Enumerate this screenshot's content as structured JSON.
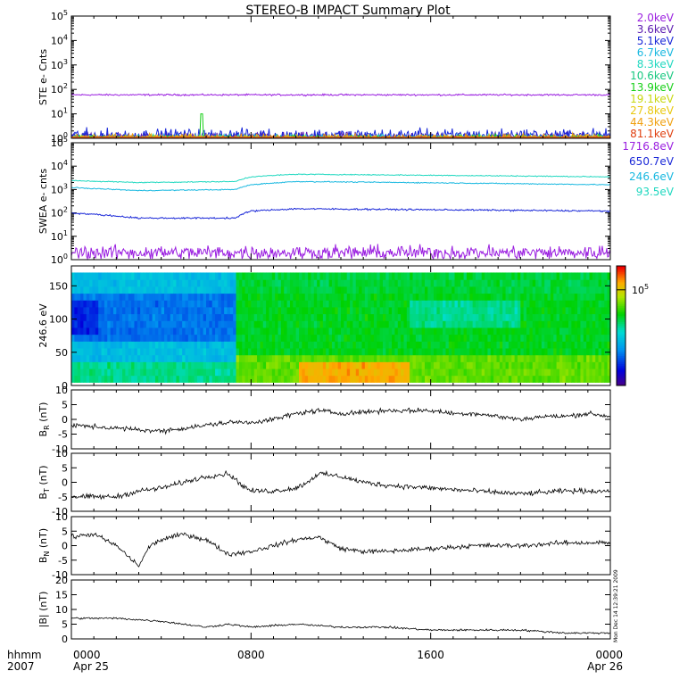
{
  "title": "STEREO-B IMPACT Summary Plot",
  "timestamp": "Mon Dec 14 12:39:21 2009",
  "x_axis": {
    "corner_labels": [
      "hhmm",
      "2007"
    ],
    "ticks": [
      {
        "hour": 0,
        "time": "0000",
        "date": "Apr 25"
      },
      {
        "hour": 8,
        "time": "0800",
        "date": ""
      },
      {
        "hour": 16,
        "time": "1600",
        "date": ""
      },
      {
        "hour": 24,
        "time": "0000",
        "date": "Apr 26"
      }
    ],
    "range_hours": [
      0,
      24
    ]
  },
  "colors": {
    "purple": "#9a1ee0",
    "violet": "#5a1ab0",
    "blue": "#1a28d8",
    "cyan": "#18b8e0",
    "teal": "#20d8c0",
    "green": "#18d018",
    "yellow": "#e8c810",
    "orange": "#f0a010",
    "red": "#e02010"
  },
  "chart_data": [
    {
      "type": "line",
      "id": "ste",
      "ylabel": "STE e- Cnts",
      "yscale": "log",
      "ylim_exp": [
        0,
        5
      ],
      "y_ticks": [
        "10^0",
        "10^1",
        "10^2",
        "10^3",
        "10^4",
        "10^5"
      ],
      "series": [
        {
          "name": "2.0keV",
          "color": "#9a1ee0",
          "level": 60,
          "noise": 0.05,
          "side": true
        },
        {
          "name": "3.6keV",
          "color": "#5a1ab0",
          "level": 1.1,
          "noise": 0.3,
          "side": true
        },
        {
          "name": "5.1keV",
          "color": "#1a28d8",
          "level": 1.3,
          "noise": 0.4,
          "side": true
        },
        {
          "name": "6.7keV",
          "color": "#18b8e0",
          "level": 1.0,
          "noise": 0.2,
          "side": true
        },
        {
          "name": "8.3keV",
          "color": "#20d8c0",
          "level": 1.0,
          "noise": 0.2,
          "side": true
        },
        {
          "name": "10.6keV",
          "color": "#18c880",
          "level": 1.0,
          "noise": 0.2,
          "side": true
        },
        {
          "name": "13.9keV",
          "color": "#18d018",
          "level": 1.0,
          "noise": 0.2,
          "side": true,
          "spike": {
            "hour": 5.8,
            "value": 10
          }
        },
        {
          "name": "19.1keV",
          "color": "#c8d810",
          "level": 1.0,
          "noise": 0.15,
          "side": true
        },
        {
          "name": "27.8keV",
          "color": "#e8c810",
          "level": 1.0,
          "noise": 0.15,
          "side": true
        },
        {
          "name": "44.3keV",
          "color": "#f0a010",
          "level": 1.1,
          "noise": 0.2,
          "side": true
        },
        {
          "name": "81.1keV",
          "color": "#e04010",
          "level": 1.0,
          "noise": 0.1,
          "side": true
        }
      ]
    },
    {
      "type": "line",
      "id": "swea",
      "ylabel": "SWEA e- cnts",
      "yscale": "log",
      "ylim_exp": [
        0,
        5
      ],
      "y_ticks": [
        "10^0",
        "10^1",
        "10^2",
        "10^3",
        "10^4",
        "10^5"
      ],
      "series": [
        {
          "name": "1716.8eV",
          "color": "#9a1ee0",
          "profile": [
            [
              0,
              2
            ],
            [
              24,
              2
            ]
          ],
          "noise": 0.45,
          "side": true
        },
        {
          "name": "650.7eV",
          "color": "#1a28d8",
          "profile": [
            [
              0,
              100
            ],
            [
              3,
              60
            ],
            [
              7.3,
              60
            ],
            [
              8,
              120
            ],
            [
              10,
              150
            ],
            [
              24,
              120
            ]
          ],
          "noise": 0.05,
          "side": true
        },
        {
          "name": "246.6eV",
          "color": "#18b8e0",
          "profile": [
            [
              0,
              1200
            ],
            [
              3,
              900
            ],
            [
              7.3,
              1000
            ],
            [
              8,
              1600
            ],
            [
              10,
              2200
            ],
            [
              24,
              1600
            ]
          ],
          "noise": 0.03,
          "side": true
        },
        {
          "name": "93.5eV",
          "color": "#20d8c0",
          "profile": [
            [
              0,
              2400
            ],
            [
              3,
              2000
            ],
            [
              7.3,
              2200
            ],
            [
              8,
              3500
            ],
            [
              10,
              4500
            ],
            [
              24,
              3500
            ]
          ],
          "noise": 0.03,
          "side": true
        }
      ]
    },
    {
      "type": "heatmap",
      "id": "pad",
      "ylabel": "246.6 eV",
      "ylim": [
        0,
        180
      ],
      "y_ticks": [
        0,
        50,
        100,
        150
      ],
      "data_ylim": [
        5,
        170
      ],
      "colorbar_label": "10^5"
    },
    {
      "type": "line",
      "id": "br",
      "ylabel": "BR (nT)",
      "ylabel_main": "B",
      "ylabel_sub": "R",
      "ylabel_unit": "(nT)",
      "ylim": [
        -10,
        10
      ],
      "y_ticks": [
        -10,
        -5,
        0,
        5,
        10
      ],
      "profile": [
        [
          0,
          -2
        ],
        [
          2,
          -3
        ],
        [
          4,
          -4
        ],
        [
          6,
          -2
        ],
        [
          7,
          -1
        ],
        [
          8,
          -1
        ],
        [
          9,
          0
        ],
        [
          10,
          2
        ],
        [
          11,
          3
        ],
        [
          12,
          2
        ],
        [
          14,
          3
        ],
        [
          16,
          3
        ],
        [
          17,
          2
        ],
        [
          18,
          2
        ],
        [
          19,
          1
        ],
        [
          20,
          0
        ],
        [
          21,
          1
        ],
        [
          22,
          1
        ],
        [
          23,
          2
        ],
        [
          24,
          1
        ]
      ],
      "noise": 1.2
    },
    {
      "type": "line",
      "id": "bt",
      "ylabel": "BT (nT)",
      "ylabel_main": "B",
      "ylabel_sub": "T",
      "ylabel_unit": "(nT)",
      "ylim": [
        -10,
        10
      ],
      "y_ticks": [
        -10,
        -5,
        0,
        5,
        10
      ],
      "profile": [
        [
          0,
          -5
        ],
        [
          1,
          -5
        ],
        [
          2,
          -5
        ],
        [
          3,
          -3
        ],
        [
          4,
          -2
        ],
        [
          5,
          0
        ],
        [
          6,
          2
        ],
        [
          7,
          3
        ],
        [
          7.6,
          -1
        ],
        [
          8,
          -3
        ],
        [
          9,
          -3
        ],
        [
          10,
          -2
        ],
        [
          10.5,
          0
        ],
        [
          11,
          3
        ],
        [
          12,
          2
        ],
        [
          13,
          0
        ],
        [
          14,
          -1
        ],
        [
          16,
          -2
        ],
        [
          18,
          -3
        ],
        [
          20,
          -4
        ],
        [
          22,
          -3
        ],
        [
          24,
          -3
        ]
      ],
      "noise": 1.3
    },
    {
      "type": "line",
      "id": "bn",
      "ylabel": "BN (nT)",
      "ylabel_main": "B",
      "ylabel_sub": "N",
      "ylabel_unit": "(nT)",
      "ylim": [
        -10,
        10
      ],
      "y_ticks": [
        -10,
        -5,
        0,
        5,
        10
      ],
      "profile": [
        [
          0,
          3
        ],
        [
          1,
          4
        ],
        [
          2,
          0
        ],
        [
          3,
          -7
        ],
        [
          3.5,
          0
        ],
        [
          4,
          2
        ],
        [
          5,
          4
        ],
        [
          6,
          2
        ],
        [
          7,
          -3
        ],
        [
          8,
          -2
        ],
        [
          9,
          0
        ],
        [
          10,
          2
        ],
        [
          11,
          3
        ],
        [
          12,
          -1
        ],
        [
          13,
          -2
        ],
        [
          14,
          -2
        ],
        [
          16,
          -1
        ],
        [
          18,
          0
        ],
        [
          20,
          0
        ],
        [
          22,
          1
        ],
        [
          24,
          1
        ]
      ],
      "noise": 1.2
    },
    {
      "type": "line",
      "id": "bmag",
      "ylabel": "|B| (nT)",
      "ylabel_main": "|B|",
      "ylabel_sub": "",
      "ylabel_unit": "(nT)",
      "ylim": [
        0,
        20
      ],
      "y_ticks": [
        0,
        5,
        10,
        15,
        20
      ],
      "profile": [
        [
          0,
          7
        ],
        [
          2,
          7
        ],
        [
          4,
          6
        ],
        [
          6,
          4
        ],
        [
          7,
          5
        ],
        [
          8,
          4
        ],
        [
          10,
          5
        ],
        [
          12,
          4
        ],
        [
          14,
          4
        ],
        [
          16,
          3
        ],
        [
          18,
          3
        ],
        [
          20,
          3
        ],
        [
          22,
          2
        ],
        [
          24,
          2
        ]
      ],
      "noise": 0.5
    }
  ]
}
